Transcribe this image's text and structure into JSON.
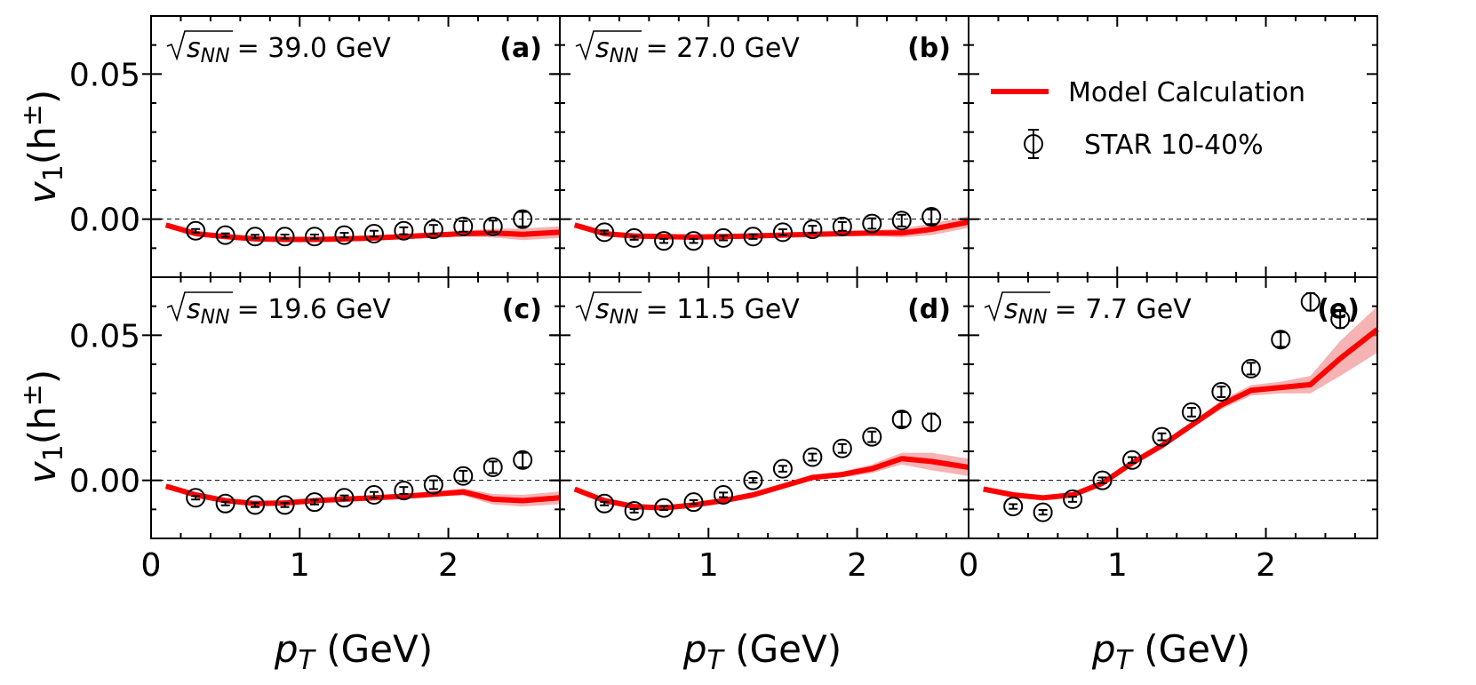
{
  "figure": {
    "ylabel_main": "v",
    "ylabel_sub": "1",
    "ylabel_arg": "(h",
    "ylabel_sup": "±",
    "ylabel_close": ")",
    "xlabel_main": "p",
    "xlabel_sub": "T",
    "xlabel_unit": " (GeV)",
    "sqrt_label": "s",
    "sqrt_sub": "NN",
    "legend": {
      "model_label": "Model Calculation",
      "data_label": "STAR 10-40%"
    },
    "colors": {
      "model": "#ff0000",
      "band": "#f08080",
      "data": "#000000"
    }
  },
  "chart_data": [
    {
      "type": "line",
      "panel": "(a)",
      "energy": "= 39.0 GeV",
      "xlim": [
        0,
        2.75
      ],
      "ylim": [
        -0.02,
        0.07
      ],
      "x_ticks": [
        "0",
        "1",
        "2"
      ],
      "y_ticks": [
        "0.00",
        "0.05"
      ],
      "model": {
        "x": [
          0.1,
          0.3,
          0.5,
          0.7,
          0.9,
          1.1,
          1.3,
          1.5,
          1.7,
          1.9,
          2.1,
          2.3,
          2.5,
          2.75
        ],
        "y": [
          -0.002,
          -0.005,
          -0.006,
          -0.0068,
          -0.007,
          -0.007,
          -0.0068,
          -0.0065,
          -0.006,
          -0.0055,
          -0.005,
          -0.0048,
          -0.0052,
          -0.0045
        ],
        "band": [
          0.0003,
          0.0003,
          0.0003,
          0.0003,
          0.0003,
          0.0003,
          0.0004,
          0.0005,
          0.0006,
          0.0008,
          0.001,
          0.0015,
          0.002,
          0.002
        ]
      },
      "star": {
        "x": [
          0.3,
          0.5,
          0.7,
          0.9,
          1.1,
          1.3,
          1.5,
          1.7,
          1.9,
          2.1,
          2.3,
          2.5
        ],
        "y": [
          -0.004,
          -0.0055,
          -0.006,
          -0.006,
          -0.006,
          -0.0055,
          -0.005,
          -0.004,
          -0.0035,
          -0.0025,
          -0.0025,
          0.0
        ],
        "err": [
          0.0006,
          0.0006,
          0.0006,
          0.0007,
          0.0007,
          0.0008,
          0.001,
          0.0012,
          0.0015,
          0.0018,
          0.002,
          0.0025
        ]
      }
    },
    {
      "type": "line",
      "panel": "(b)",
      "energy": "= 27.0 GeV",
      "xlim": [
        0,
        2.75
      ],
      "ylim": [
        -0.02,
        0.07
      ],
      "x_ticks": [],
      "y_ticks": [],
      "model": {
        "x": [
          0.1,
          0.3,
          0.5,
          0.7,
          0.9,
          1.1,
          1.3,
          1.5,
          1.7,
          1.9,
          2.1,
          2.3,
          2.5,
          2.75
        ],
        "y": [
          -0.002,
          -0.005,
          -0.0058,
          -0.006,
          -0.0062,
          -0.006,
          -0.0058,
          -0.0055,
          -0.0052,
          -0.005,
          -0.0048,
          -0.0048,
          -0.0035,
          -0.001
        ],
        "band": [
          0.0003,
          0.0003,
          0.0003,
          0.0003,
          0.0003,
          0.0003,
          0.0004,
          0.0005,
          0.0006,
          0.0008,
          0.001,
          0.0015,
          0.002,
          0.002
        ]
      },
      "star": {
        "x": [
          0.3,
          0.5,
          0.7,
          0.9,
          1.1,
          1.3,
          1.5,
          1.7,
          1.9,
          2.1,
          2.3,
          2.5
        ],
        "y": [
          -0.0045,
          -0.0065,
          -0.0075,
          -0.0075,
          -0.0065,
          -0.006,
          -0.0045,
          -0.0035,
          -0.0025,
          -0.0015,
          -0.0005,
          0.0008
        ],
        "err": [
          0.0006,
          0.0006,
          0.0007,
          0.0007,
          0.0008,
          0.0008,
          0.001,
          0.0012,
          0.0015,
          0.0018,
          0.002,
          0.0025
        ]
      }
    },
    {
      "type": "legend",
      "panel": "",
      "energy": "",
      "xlim": [
        0,
        2.75
      ],
      "ylim": [
        -0.02,
        0.07
      ],
      "x_ticks": [],
      "y_ticks": [],
      "model": {
        "x": [],
        "y": [],
        "band": []
      },
      "star": {
        "x": [],
        "y": [],
        "err": []
      }
    },
    {
      "type": "line",
      "panel": "(c)",
      "energy": "= 19.6 GeV",
      "xlim": [
        0,
        2.75
      ],
      "ylim": [
        -0.02,
        0.07
      ],
      "x_ticks": [
        "0",
        "1",
        "2"
      ],
      "y_ticks": [
        "0.00",
        "0.05"
      ],
      "model": {
        "x": [
          0.1,
          0.3,
          0.5,
          0.7,
          0.9,
          1.1,
          1.3,
          1.5,
          1.7,
          1.9,
          2.1,
          2.3,
          2.5,
          2.75
        ],
        "y": [
          -0.002,
          -0.005,
          -0.007,
          -0.008,
          -0.0078,
          -0.007,
          -0.0065,
          -0.006,
          -0.0055,
          -0.0048,
          -0.004,
          -0.0065,
          -0.007,
          -0.006
        ],
        "band": [
          0.0003,
          0.0003,
          0.0003,
          0.0003,
          0.0003,
          0.0003,
          0.0004,
          0.0005,
          0.0006,
          0.0008,
          0.0012,
          0.0018,
          0.002,
          0.0022
        ]
      },
      "star": {
        "x": [
          0.3,
          0.5,
          0.7,
          0.9,
          1.1,
          1.3,
          1.5,
          1.7,
          1.9,
          2.1,
          2.3,
          2.5
        ],
        "y": [
          -0.006,
          -0.008,
          -0.0085,
          -0.0085,
          -0.0075,
          -0.006,
          -0.005,
          -0.0035,
          -0.0015,
          0.0015,
          0.0045,
          0.007
        ],
        "err": [
          0.0006,
          0.0006,
          0.0007,
          0.0007,
          0.0008,
          0.0008,
          0.001,
          0.0012,
          0.0015,
          0.0018,
          0.002,
          0.0025
        ]
      }
    },
    {
      "type": "line",
      "panel": "(d)",
      "energy": "= 11.5 GeV",
      "xlim": [
        0,
        2.75
      ],
      "ylim": [
        -0.02,
        0.07
      ],
      "x_ticks": [
        "1",
        "2"
      ],
      "y_ticks": [],
      "model": {
        "x": [
          0.1,
          0.3,
          0.5,
          0.7,
          0.9,
          1.1,
          1.3,
          1.5,
          1.7,
          1.9,
          2.1,
          2.3,
          2.5,
          2.75
        ],
        "y": [
          -0.003,
          -0.007,
          -0.009,
          -0.0095,
          -0.0085,
          -0.007,
          -0.005,
          -0.002,
          0.001,
          0.002,
          0.004,
          0.0075,
          0.0065,
          0.0045
        ],
        "band": [
          0.0003,
          0.0003,
          0.0003,
          0.0003,
          0.0003,
          0.0004,
          0.0005,
          0.0006,
          0.0008,
          0.001,
          0.0015,
          0.002,
          0.003,
          0.003
        ]
      },
      "star": {
        "x": [
          0.3,
          0.5,
          0.7,
          0.9,
          1.1,
          1.3,
          1.5,
          1.7,
          1.9,
          2.1,
          2.3,
          2.5
        ],
        "y": [
          -0.008,
          -0.0105,
          -0.0095,
          -0.0075,
          -0.005,
          0.0,
          0.004,
          0.008,
          0.011,
          0.015,
          0.021,
          0.02
        ],
        "err": [
          0.0006,
          0.0006,
          0.0007,
          0.0007,
          0.0008,
          0.0008,
          0.001,
          0.0012,
          0.0015,
          0.0018,
          0.0025,
          0.003
        ]
      }
    },
    {
      "type": "line",
      "panel": "(e)",
      "energy": "= 7.7 GeV",
      "xlim": [
        0,
        2.75
      ],
      "ylim": [
        -0.02,
        0.07
      ],
      "x_ticks": [
        "0",
        "1",
        "2"
      ],
      "y_ticks": [],
      "model": {
        "x": [
          0.1,
          0.3,
          0.5,
          0.7,
          0.9,
          1.1,
          1.3,
          1.5,
          1.7,
          1.9,
          2.1,
          2.3,
          2.5,
          2.75
        ],
        "y": [
          -0.003,
          -0.005,
          -0.006,
          -0.005,
          -0.001,
          0.006,
          0.012,
          0.019,
          0.026,
          0.031,
          0.032,
          0.033,
          0.042,
          0.052
        ],
        "band": [
          0.0003,
          0.0003,
          0.0003,
          0.0003,
          0.0005,
          0.0006,
          0.0008,
          0.001,
          0.0015,
          0.0018,
          0.002,
          0.003,
          0.006,
          0.008
        ]
      },
      "star": {
        "x": [
          0.3,
          0.5,
          0.7,
          0.9,
          1.1,
          1.3,
          1.5,
          1.7,
          1.9,
          2.1,
          2.3,
          2.5
        ],
        "y": [
          -0.009,
          -0.011,
          -0.0065,
          0.0,
          0.007,
          0.015,
          0.0235,
          0.0305,
          0.0385,
          0.0485,
          0.0615,
          0.0555
        ],
        "err": [
          0.0008,
          0.0008,
          0.0009,
          0.001,
          0.001,
          0.0012,
          0.0015,
          0.0018,
          0.002,
          0.0025,
          0.003,
          0.003
        ]
      }
    }
  ]
}
